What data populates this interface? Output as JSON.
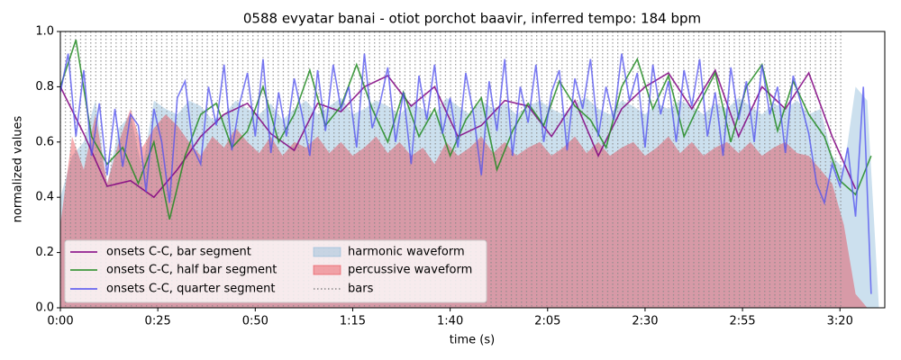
{
  "chart_data": {
    "type": "line",
    "title": "0588 evyatar banai - otiot porchot baavir, inferred tempo: 184 bpm",
    "x_label": "time (s)",
    "y_label": "normalized values",
    "xlim": [
      0,
      211.5
    ],
    "ylim": [
      0,
      1
    ],
    "xticks": [
      {
        "value": 0,
        "label": "0:00"
      },
      {
        "value": 25,
        "label": "0:25"
      },
      {
        "value": 50,
        "label": "0:50"
      },
      {
        "value": 75,
        "label": "1:15"
      },
      {
        "value": 100,
        "label": "1:40"
      },
      {
        "value": 125,
        "label": "2:05"
      },
      {
        "value": 150,
        "label": "2:30"
      },
      {
        "value": 175,
        "label": "2:55"
      },
      {
        "value": 200,
        "label": "3:20"
      }
    ],
    "yticks": [
      {
        "value": 0,
        "label": "0.0"
      },
      0.2,
      0.4,
      0.6,
      0.8,
      {
        "value": 1,
        "label": "1.0"
      }
    ],
    "legend": "lower left",
    "areas": [
      {
        "name": "harmonic waveform",
        "color": "#7fb2d5",
        "x": [
          0,
          3,
          6,
          9,
          12,
          15,
          18,
          21,
          24,
          27,
          30,
          33,
          36,
          39,
          42,
          45,
          48,
          51,
          54,
          57,
          60,
          63,
          66,
          69,
          72,
          75,
          78,
          81,
          84,
          87,
          90,
          93,
          96,
          99,
          102,
          105,
          108,
          111,
          114,
          117,
          120,
          123,
          126,
          129,
          132,
          135,
          138,
          141,
          144,
          147,
          150,
          153,
          156,
          159,
          162,
          165,
          168,
          171,
          174,
          177,
          180,
          183,
          186,
          189,
          192,
          195,
          198,
          201,
          204,
          207,
          210
        ],
        "values": [
          0.4,
          0.55,
          0.6,
          0.75,
          0.45,
          0.65,
          0.7,
          0.5,
          0.75,
          0.72,
          0.7,
          0.75,
          0.73,
          0.68,
          0.7,
          0.75,
          0.72,
          0.7,
          0.74,
          0.68,
          0.72,
          0.75,
          0.7,
          0.73,
          0.76,
          0.7,
          0.72,
          0.75,
          0.73,
          0.7,
          0.74,
          0.72,
          0.7,
          0.76,
          0.73,
          0.7,
          0.75,
          0.72,
          0.74,
          0.7,
          0.73,
          0.75,
          0.72,
          0.7,
          0.74,
          0.76,
          0.72,
          0.7,
          0.75,
          0.73,
          0.7,
          0.74,
          0.72,
          0.75,
          0.73,
          0.7,
          0.74,
          0.72,
          0.76,
          0.73,
          0.7,
          0.74,
          0.72,
          0.75,
          0.7,
          0.72,
          0.55,
          0.5,
          0.8,
          0.75,
          0
        ]
      },
      {
        "name": "percussive waveform",
        "color": "#e8323c",
        "x": [
          0,
          3,
          6,
          9,
          12,
          15,
          18,
          21,
          24,
          27,
          30,
          33,
          36,
          39,
          42,
          45,
          48,
          51,
          54,
          57,
          60,
          63,
          66,
          69,
          72,
          75,
          78,
          81,
          84,
          87,
          90,
          93,
          96,
          99,
          102,
          105,
          108,
          111,
          114,
          117,
          120,
          123,
          126,
          129,
          132,
          135,
          138,
          141,
          144,
          147,
          150,
          153,
          156,
          159,
          162,
          165,
          168,
          171,
          174,
          177,
          180,
          183,
          186,
          189,
          192,
          195,
          198,
          201,
          204,
          207,
          210
        ],
        "values": [
          0.3,
          0.62,
          0.5,
          0.7,
          0.45,
          0.6,
          0.72,
          0.58,
          0.65,
          0.7,
          0.66,
          0.6,
          0.55,
          0.62,
          0.58,
          0.65,
          0.6,
          0.56,
          0.62,
          0.55,
          0.6,
          0.58,
          0.62,
          0.56,
          0.6,
          0.55,
          0.58,
          0.62,
          0.56,
          0.6,
          0.55,
          0.58,
          0.52,
          0.6,
          0.55,
          0.58,
          0.62,
          0.56,
          0.6,
          0.55,
          0.58,
          0.6,
          0.55,
          0.58,
          0.62,
          0.56,
          0.6,
          0.55,
          0.58,
          0.6,
          0.55,
          0.58,
          0.62,
          0.56,
          0.6,
          0.55,
          0.58,
          0.6,
          0.56,
          0.6,
          0.55,
          0.58,
          0.6,
          0.56,
          0.55,
          0.5,
          0.45,
          0.3,
          0.05,
          0,
          0
        ]
      }
    ],
    "bars": {
      "name": "bars",
      "color": "#888888",
      "values": [
        0,
        1.3,
        2.6,
        3.9,
        5.2,
        6.5,
        7.8,
        9.1,
        10.4,
        11.7,
        13,
        14.3,
        15.6,
        16.9,
        18.2,
        19.5,
        20.8,
        22.1,
        23.4,
        24.7,
        26,
        27.3,
        28.6,
        29.9,
        31.2,
        32.5,
        33.8,
        35.1,
        36.4,
        37.7,
        39,
        40.3,
        41.6,
        42.9,
        44.2,
        45.5,
        46.8,
        48.1,
        49.4,
        50.7,
        52,
        53.3,
        54.6,
        55.9,
        57.2,
        58.5,
        59.8,
        61.1,
        62.4,
        63.7,
        65,
        66.3,
        67.6,
        68.9,
        70.2,
        71.5,
        72.8,
        74.1,
        75.4,
        76.7,
        78,
        79.3,
        80.6,
        81.9,
        83.2,
        84.5,
        85.8,
        87.1,
        88.4,
        89.7,
        91,
        92.3,
        93.6,
        94.9,
        96.2,
        97.5,
        98.8,
        100.1,
        101.4,
        102.7,
        104,
        105.3,
        106.6,
        107.9,
        109.2,
        110.5,
        111.8,
        113.1,
        114.4,
        115.7,
        117,
        118.3,
        119.6,
        120.9,
        122.2,
        123.5,
        124.8,
        126.1,
        127.4,
        128.7,
        130,
        131.3,
        132.6,
        133.9,
        135.2,
        136.5,
        137.8,
        139.1,
        140.4,
        141.7,
        143,
        144.3,
        145.6,
        146.9,
        148.2,
        149.5,
        150.8,
        152.1,
        153.4,
        154.7,
        156,
        157.3,
        158.6,
        159.9,
        161.2,
        162.5,
        163.8,
        165.1,
        166.4,
        167.7,
        169,
        170.3,
        171.6,
        172.9,
        174.2,
        175.5,
        176.8,
        178.1,
        179.4,
        180.7,
        182,
        183.3,
        184.6,
        185.9,
        187.2,
        188.5,
        189.8,
        191.1,
        192.4,
        193.7,
        195,
        196.3,
        197.6,
        198.9,
        200.2
      ]
    },
    "series": [
      {
        "name": "onsets C-C, bar segment",
        "color": "#800080",
        "x": [
          0,
          6,
          12,
          18,
          24,
          30,
          36,
          42,
          48,
          54,
          60,
          66,
          72,
          78,
          84,
          90,
          96,
          102,
          108,
          114,
          120,
          126,
          132,
          138,
          144,
          150,
          156,
          162,
          168,
          174,
          180,
          186,
          192,
          198,
          204
        ],
        "values": [
          0.8,
          0.63,
          0.44,
          0.46,
          0.4,
          0.5,
          0.62,
          0.7,
          0.74,
          0.63,
          0.57,
          0.74,
          0.71,
          0.8,
          0.84,
          0.73,
          0.8,
          0.62,
          0.66,
          0.75,
          0.73,
          0.62,
          0.75,
          0.55,
          0.72,
          0.8,
          0.85,
          0.72,
          0.86,
          0.62,
          0.8,
          0.72,
          0.85,
          0.62,
          0.43
        ]
      },
      {
        "name": "onsets C-C, half bar segment",
        "color": "#228b22",
        "x": [
          0,
          4,
          8,
          12,
          16,
          20,
          24,
          28,
          32,
          36,
          40,
          44,
          48,
          52,
          56,
          60,
          64,
          68,
          72,
          76,
          80,
          84,
          88,
          92,
          96,
          100,
          104,
          108,
          112,
          116,
          120,
          124,
          128,
          132,
          136,
          140,
          144,
          148,
          152,
          156,
          160,
          164,
          168,
          172,
          176,
          180,
          184,
          188,
          192,
          196,
          200,
          204,
          208
        ],
        "values": [
          0.8,
          0.97,
          0.62,
          0.52,
          0.58,
          0.45,
          0.6,
          0.32,
          0.55,
          0.7,
          0.74,
          0.58,
          0.64,
          0.8,
          0.6,
          0.7,
          0.86,
          0.66,
          0.73,
          0.88,
          0.72,
          0.6,
          0.78,
          0.62,
          0.72,
          0.55,
          0.68,
          0.76,
          0.5,
          0.64,
          0.74,
          0.66,
          0.82,
          0.73,
          0.68,
          0.58,
          0.8,
          0.9,
          0.72,
          0.84,
          0.62,
          0.74,
          0.85,
          0.6,
          0.8,
          0.88,
          0.64,
          0.82,
          0.7,
          0.62,
          0.46,
          0.41,
          0.55
        ]
      },
      {
        "name": "onsets C-C, quarter segment",
        "color": "#5050f0",
        "x": [
          0,
          2,
          4,
          6,
          8,
          10,
          12,
          14,
          16,
          18,
          20,
          22,
          24,
          26,
          28,
          30,
          32,
          34,
          36,
          38,
          40,
          42,
          44,
          46,
          48,
          50,
          52,
          54,
          56,
          58,
          60,
          62,
          64,
          66,
          68,
          70,
          72,
          74,
          76,
          78,
          80,
          82,
          84,
          86,
          88,
          90,
          92,
          94,
          96,
          98,
          100,
          102,
          104,
          106,
          108,
          110,
          112,
          114,
          116,
          118,
          120,
          122,
          124,
          126,
          128,
          130,
          132,
          134,
          136,
          138,
          140,
          142,
          144,
          146,
          148,
          150,
          152,
          154,
          156,
          158,
          160,
          162,
          164,
          166,
          168,
          170,
          172,
          174,
          176,
          178,
          180,
          182,
          184,
          186,
          188,
          190,
          192,
          194,
          196,
          198,
          200,
          202,
          204,
          206,
          208
        ],
        "values": [
          0.78,
          0.92,
          0.62,
          0.86,
          0.55,
          0.74,
          0.48,
          0.72,
          0.51,
          0.7,
          0.66,
          0.42,
          0.72,
          0.6,
          0.38,
          0.76,
          0.82,
          0.58,
          0.52,
          0.8,
          0.66,
          0.88,
          0.57,
          0.74,
          0.85,
          0.62,
          0.9,
          0.56,
          0.78,
          0.62,
          0.83,
          0.7,
          0.55,
          0.86,
          0.64,
          0.88,
          0.72,
          0.8,
          0.58,
          0.92,
          0.65,
          0.74,
          0.87,
          0.6,
          0.78,
          0.52,
          0.84,
          0.68,
          0.88,
          0.63,
          0.76,
          0.58,
          0.85,
          0.7,
          0.48,
          0.82,
          0.64,
          0.9,
          0.55,
          0.8,
          0.67,
          0.88,
          0.6,
          0.78,
          0.86,
          0.57,
          0.83,
          0.72,
          0.9,
          0.62,
          0.8,
          0.68,
          0.92,
          0.75,
          0.85,
          0.58,
          0.88,
          0.7,
          0.82,
          0.6,
          0.86,
          0.73,
          0.9,
          0.62,
          0.78,
          0.55,
          0.87,
          0.68,
          0.82,
          0.6,
          0.88,
          0.7,
          0.8,
          0.56,
          0.84,
          0.74,
          0.63,
          0.45,
          0.38,
          0.52,
          0.44,
          0.58,
          0.33,
          0.8,
          0.05
        ]
      }
    ]
  }
}
